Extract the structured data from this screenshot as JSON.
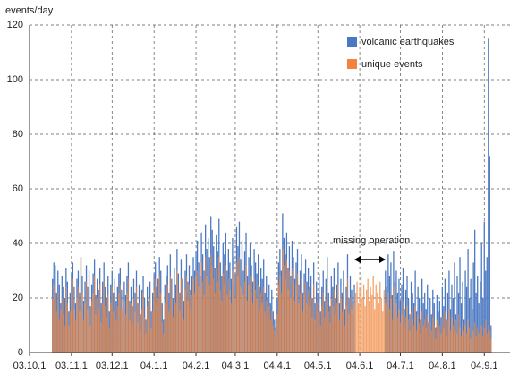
{
  "chart_data": {
    "type": "bar",
    "ylabel": "events/day",
    "annotation": "missing operation",
    "legend": "upper right",
    "grid": true,
    "xlim": [
      0,
      355
    ],
    "xticks": [
      {
        "value": 0,
        "label": "03.10.1"
      },
      {
        "value": 31,
        "label": "03.11.1"
      },
      {
        "value": 61,
        "label": "03.12.1"
      },
      {
        "value": 92,
        "label": "04.1.1"
      },
      {
        "value": 123,
        "label": "04.2.1"
      },
      {
        "value": 152,
        "label": "04.3.1"
      },
      {
        "value": 183,
        "label": "04.4.1"
      },
      {
        "value": 213,
        "label": "04.5.1"
      },
      {
        "value": 244,
        "label": "04.6.1"
      },
      {
        "value": 274,
        "label": "04.7.1"
      },
      {
        "value": 305,
        "label": "04.8.1"
      },
      {
        "value": 336,
        "label": "04.9.1"
      }
    ],
    "ylim": [
      0,
      120
    ],
    "yticks": [
      0,
      20,
      40,
      60,
      80,
      100,
      120
    ],
    "x": [
      17,
      18,
      19,
      20,
      21,
      22,
      23,
      24,
      25,
      26,
      27,
      28,
      29,
      30,
      31,
      32,
      33,
      34,
      35,
      36,
      37,
      38,
      39,
      40,
      41,
      42,
      43,
      44,
      45,
      46,
      47,
      48,
      49,
      50,
      51,
      52,
      53,
      54,
      55,
      56,
      57,
      58,
      59,
      60,
      61,
      62,
      63,
      64,
      65,
      66,
      67,
      68,
      69,
      70,
      71,
      72,
      73,
      74,
      75,
      76,
      77,
      78,
      79,
      80,
      81,
      82,
      83,
      84,
      85,
      86,
      87,
      88,
      89,
      90,
      91,
      92,
      93,
      94,
      95,
      96,
      97,
      98,
      99,
      100,
      101,
      102,
      103,
      104,
      105,
      106,
      107,
      108,
      109,
      110,
      111,
      112,
      113,
      114,
      115,
      116,
      117,
      118,
      119,
      120,
      121,
      122,
      123,
      124,
      125,
      126,
      127,
      128,
      129,
      130,
      131,
      132,
      133,
      134,
      135,
      136,
      137,
      138,
      139,
      140,
      141,
      142,
      143,
      144,
      145,
      146,
      147,
      148,
      149,
      150,
      151,
      152,
      153,
      154,
      155,
      156,
      157,
      158,
      159,
      160,
      161,
      162,
      163,
      164,
      165,
      166,
      167,
      168,
      169,
      170,
      171,
      172,
      173,
      174,
      175,
      176,
      177,
      178,
      179,
      180,
      181,
      182,
      183,
      184,
      185,
      186,
      187,
      188,
      189,
      190,
      191,
      192,
      193,
      194,
      195,
      196,
      197,
      198,
      199,
      200,
      201,
      202,
      203,
      204,
      205,
      206,
      207,
      208,
      209,
      210,
      211,
      212,
      213,
      214,
      215,
      216,
      217,
      218,
      219,
      220,
      221,
      222,
      223,
      224,
      225,
      226,
      227,
      228,
      229,
      230,
      231,
      232,
      233,
      234,
      235,
      236,
      237,
      238,
      239,
      240,
      241,
      242,
      243,
      244,
      245,
      246,
      247,
      248,
      249,
      250,
      251,
      252,
      253,
      254,
      255,
      256,
      257,
      258,
      259,
      260,
      261,
      262,
      263,
      264,
      265,
      266,
      267,
      268,
      269,
      270,
      271,
      272,
      273,
      274,
      275,
      276,
      277,
      278,
      279,
      280,
      281,
      282,
      283,
      284,
      285,
      286,
      287,
      288,
      289,
      290,
      291,
      292,
      293,
      294,
      295,
      296,
      297,
      298,
      299,
      300,
      301,
      302,
      303,
      304,
      305,
      306,
      307,
      308,
      309,
      310,
      311,
      312,
      313,
      314,
      315,
      316,
      317,
      318,
      319,
      320,
      321,
      322,
      323,
      324,
      325,
      326,
      327,
      328,
      329,
      330,
      331,
      332,
      333,
      334,
      335,
      336,
      337,
      338,
      339,
      340,
      341
    ],
    "series": [
      {
        "name": "volcanic earthquakes",
        "color": "#4a78c2",
        "values": [
          27,
          33,
          32,
          22,
          30,
          25,
          18,
          28,
          24,
          20,
          31,
          26,
          15,
          22,
          29,
          33,
          24,
          18,
          27,
          30,
          22,
          35,
          28,
          19,
          26,
          32,
          24,
          30,
          17,
          25,
          29,
          34,
          21,
          27,
          23,
          31,
          18,
          26,
          33,
          24,
          20,
          28,
          15,
          25,
          30,
          22,
          27,
          19,
          24,
          29,
          31,
          23,
          16,
          26,
          21,
          28,
          33,
          19,
          24,
          17,
          27,
          22,
          30,
          18,
          25,
          14,
          23,
          28,
          20,
          12,
          24,
          19,
          26,
          15,
          22,
          29,
          33,
          24,
          27,
          35,
          30,
          18,
          12,
          25,
          28,
          32,
          22,
          36,
          27,
          20,
          31,
          25,
          38,
          29,
          22,
          34,
          27,
          19,
          30,
          36,
          26,
          32,
          23,
          28,
          35,
          30,
          37,
          41,
          33,
          28,
          44,
          36,
          30,
          47,
          38,
          42,
          35,
          50,
          45,
          39,
          31,
          43,
          37,
          49,
          33,
          28,
          40,
          36,
          44,
          30,
          38,
          33,
          27,
          42,
          35,
          29,
          46,
          39,
          48,
          34,
          41,
          30,
          37,
          44,
          28,
          35,
          40,
          32,
          26,
          38,
          33,
          29,
          36,
          24,
          31,
          27,
          34,
          22,
          28,
          20,
          25,
          18,
          23,
          15,
          12,
          9,
          20,
          33,
          38,
          30,
          51,
          42,
          36,
          44,
          31,
          39,
          28,
          41,
          35,
          27,
          33,
          38,
          25,
          30,
          36,
          22,
          29,
          34,
          26,
          31,
          24,
          28,
          20,
          33,
          18,
          26,
          22,
          29,
          15,
          24,
          30,
          19,
          27,
          35,
          22,
          17,
          28,
          24,
          31,
          20,
          25,
          33,
          18,
          27,
          22,
          30,
          16,
          24,
          36,
          20,
          28,
          23,
          19,
          25,
          null,
          null,
          null,
          null,
          null,
          null,
          null,
          null,
          null,
          null,
          null,
          null,
          null,
          null,
          null,
          null,
          null,
          null,
          null,
          null,
          null,
          null,
          30,
          24,
          36,
          28,
          33,
          21,
          37,
          26,
          30,
          22,
          27,
          19,
          25,
          31,
          16,
          23,
          28,
          20,
          14,
          26,
          22,
          18,
          30,
          15,
          24,
          20,
          12,
          27,
          18,
          22,
          16,
          25,
          11,
          20,
          14,
          23,
          18,
          9,
          21,
          15,
          19,
          13,
          24,
          17,
          27,
          12,
          22,
          30,
          16,
          25,
          20,
          33,
          14,
          28,
          22,
          35,
          18,
          26,
          12,
          30,
          24,
          38,
          20,
          27,
          16,
          33,
          45,
          22,
          28,
          18,
          26,
          40,
          20,
          48,
          30,
          35,
          115,
          72,
          10
        ]
      },
      {
        "name": "unique events",
        "color": "#f0843a",
        "values": [
          20,
          25,
          18,
          15,
          22,
          12,
          16,
          20,
          14,
          10,
          24,
          18,
          10,
          15,
          22,
          27,
          16,
          12,
          20,
          24,
          15,
          35,
          22,
          12,
          18,
          26,
          16,
          23,
          10,
          19,
          22,
          28,
          14,
          20,
          16,
          25,
          11,
          18,
          26,
          17,
          13,
          21,
          9,
          18,
          24,
          15,
          20,
          12,
          17,
          22,
          25,
          16,
          10,
          19,
          14,
          22,
          27,
          12,
          18,
          10,
          20,
          15,
          24,
          11,
          18,
          8,
          16,
          22,
          13,
          7,
          17,
          12,
          20,
          9,
          15,
          23,
          27,
          18,
          20,
          28,
          22,
          11,
          7,
          18,
          21,
          25,
          15,
          28,
          20,
          13,
          24,
          18,
          30,
          22,
          15,
          27,
          20,
          12,
          23,
          28,
          19,
          25,
          16,
          21,
          27,
          22,
          28,
          30,
          24,
          20,
          33,
          26,
          21,
          35,
          28,
          30,
          25,
          36,
          32,
          27,
          22,
          31,
          26,
          35,
          23,
          19,
          29,
          25,
          32,
          21,
          27,
          23,
          18,
          30,
          25,
          20,
          33,
          28,
          35,
          24,
          29,
          21,
          26,
          32,
          19,
          25,
          28,
          22,
          18,
          27,
          23,
          20,
          25,
          16,
          22,
          18,
          24,
          15,
          19,
          13,
          17,
          12,
          15,
          10,
          8,
          6,
          14,
          25,
          28,
          22,
          38,
          32,
          27,
          34,
          23,
          30,
          20,
          31,
          26,
          19,
          25,
          29,
          18,
          22,
          27,
          15,
          21,
          26,
          18,
          23,
          17,
          20,
          13,
          25,
          12,
          18,
          15,
          21,
          10,
          17,
          22,
          13,
          19,
          26,
          15,
          11,
          20,
          17,
          23,
          14,
          18,
          25,
          12,
          20,
          15,
          22,
          10,
          17,
          27,
          14,
          20,
          16,
          13,
          18,
          22,
          26,
          18,
          24,
          28,
          20,
          25,
          17,
          23,
          27,
          19,
          24,
          21,
          28,
          16,
          25,
          22,
          18,
          26,
          20,
          15,
          23,
          18,
          14,
          22,
          16,
          20,
          12,
          24,
          15,
          18,
          13,
          16,
          11,
          14,
          19,
          9,
          13,
          17,
          12,
          8,
          15,
          12,
          10,
          17,
          8,
          14,
          11,
          7,
          15,
          10,
          12,
          9,
          14,
          6,
          11,
          8,
          13,
          10,
          5,
          12,
          8,
          10,
          7,
          13,
          9,
          15,
          6,
          12,
          16,
          8,
          13,
          10,
          8,
          12,
          7,
          14,
          9,
          6,
          11,
          8,
          10,
          7,
          12,
          9,
          5,
          10,
          8,
          11,
          6,
          9,
          7,
          8,
          10,
          6,
          9,
          12,
          7,
          10,
          8,
          5
        ]
      }
    ]
  }
}
